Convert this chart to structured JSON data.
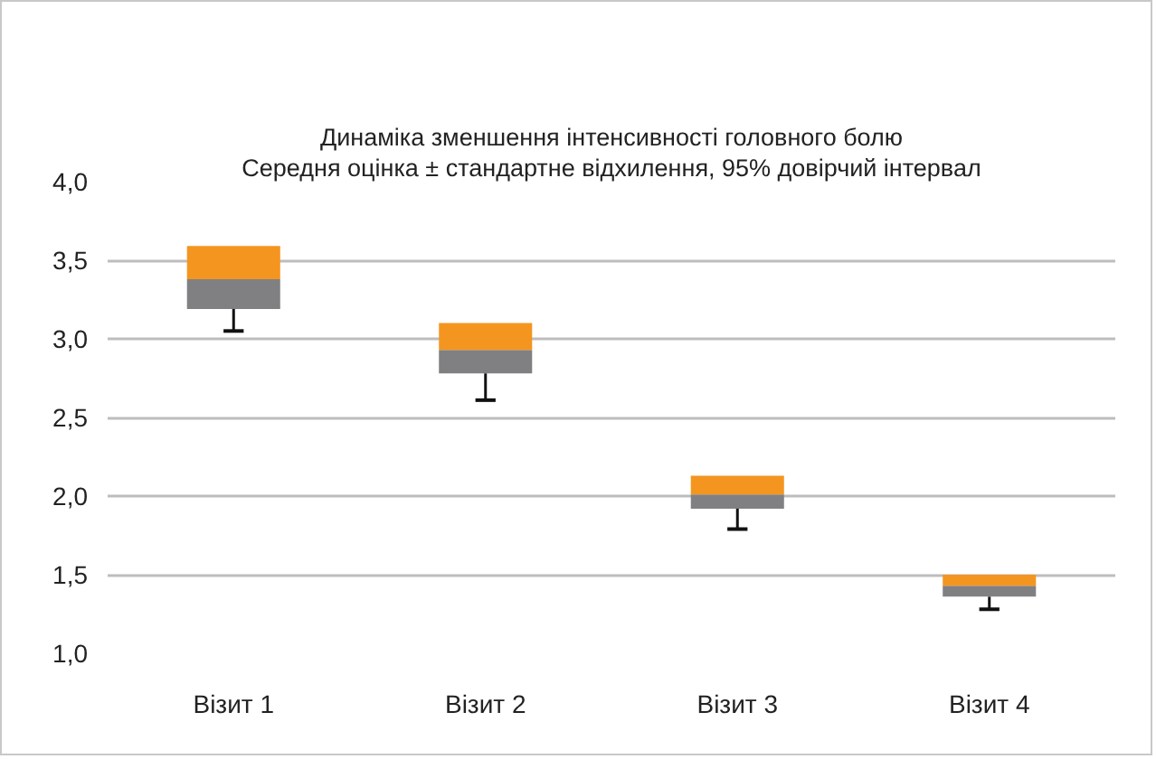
{
  "chart_data": {
    "type": "bar",
    "title": "Динаміка зменшення інтенсивності головного болю",
    "subtitle": "Середня оцінка ± стандартне відхилення, 95% довірчий інтервал",
    "categories": [
      "Візит 1",
      "Візит 2",
      "Візит 3",
      "Візит 4"
    ],
    "series": [
      {
        "color": "#808083",
        "base": [
          3.19,
          2.78,
          1.92,
          1.36
        ],
        "values": [
          0.19,
          0.15,
          0.09,
          0.07
        ],
        "errors": [
          [
            3.05,
            3.19
          ],
          [
            2.61,
            2.78
          ],
          [
            1.79,
            1.92
          ],
          [
            1.28,
            1.36
          ]
        ]
      },
      {
        "color": "#f49520",
        "base": [
          3.38,
          2.93,
          2.01,
          1.43
        ],
        "values": [
          0.21,
          0.17,
          0.12,
          0.07
        ]
      }
    ],
    "ylim": [
      1.0,
      4.0
    ],
    "yticks": [
      {
        "value": 1.0,
        "label": "1,0"
      },
      {
        "value": 1.5,
        "label": "1,5"
      },
      {
        "value": 2.0,
        "label": "2,0"
      },
      {
        "value": 2.5,
        "label": "2,5"
      },
      {
        "value": 3.0,
        "label": "3,0"
      },
      {
        "value": 3.5,
        "label": "3,5"
      },
      {
        "value": 4.0,
        "label": "4,0"
      }
    ],
    "grid": "y"
  }
}
